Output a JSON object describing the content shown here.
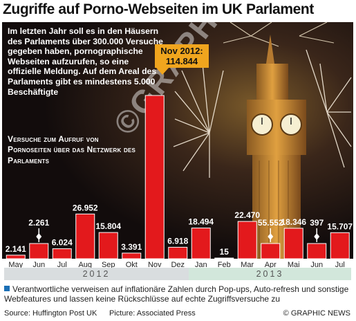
{
  "title": "Zugriffe auf Porno-Webseiten im UK Parlament",
  "intro": "Im letzten Jahr soll es in den Häusern des Parlaments über 300.000 Versuche gegeben haben, pornographische Webseiten aufzurufen, so eine offizielle Meldung. Auf dem Areal des Parlaments gibt es mindestens 5.000 Beschäftigte",
  "callout": {
    "line1": "Nov 2012:",
    "line2": "114.844"
  },
  "watermark": "©GRAPHIC NEWS",
  "year_labels": {
    "y2012": "2012",
    "y2013": "2013"
  },
  "footnote": "Verantwortliche verweisen auf inflationäre Zahlen durch Pop-ups, Auto-refresh und sonstige Webfeatures und lassen keine Rückschlüsse auf echte Zugriffsversuche zu",
  "source": "Source: Huffington Post UK",
  "picture": "Picture: Associated Press",
  "credit": "© GRAPHIC NEWS",
  "colors": {
    "bar": "#e3191c",
    "bar_edge": "#ffffff",
    "callout": "#f0a51e",
    "accent": "#1a6fb5"
  },
  "chart_data": {
    "type": "bar",
    "title": "Versuche zum Aufruf von Pornoseiten über das Netzwerk des Parlaments",
    "categories": [
      "May",
      "Jun",
      "Jul",
      "Aug",
      "Sep",
      "Okt",
      "Nov",
      "Dez",
      "Jan",
      "Feb",
      "Mar",
      "Apr",
      "Mai",
      "Jun",
      "Jul"
    ],
    "values": [
      2141,
      2261,
      6024,
      26952,
      15804,
      3391,
      114844,
      6918,
      18494,
      15,
      22470,
      55552,
      18346,
      397,
      15707
    ],
    "value_labels": [
      "2.141",
      "2.261",
      "6.024",
      "26.952",
      "15.804",
      "3.391",
      "",
      "6.918",
      "18.494",
      "15",
      "22.470",
      "55.552",
      "18.346",
      "397",
      "15.707"
    ],
    "broken_axis_bars": [
      "Jun",
      "Apr"
    ],
    "years": [
      "2012",
      "2012",
      "2012",
      "2012",
      "2012",
      "2012",
      "2012",
      "2012",
      "2013",
      "2013",
      "2013",
      "2013",
      "2013",
      "2013",
      "2013"
    ],
    "grid": false
  }
}
